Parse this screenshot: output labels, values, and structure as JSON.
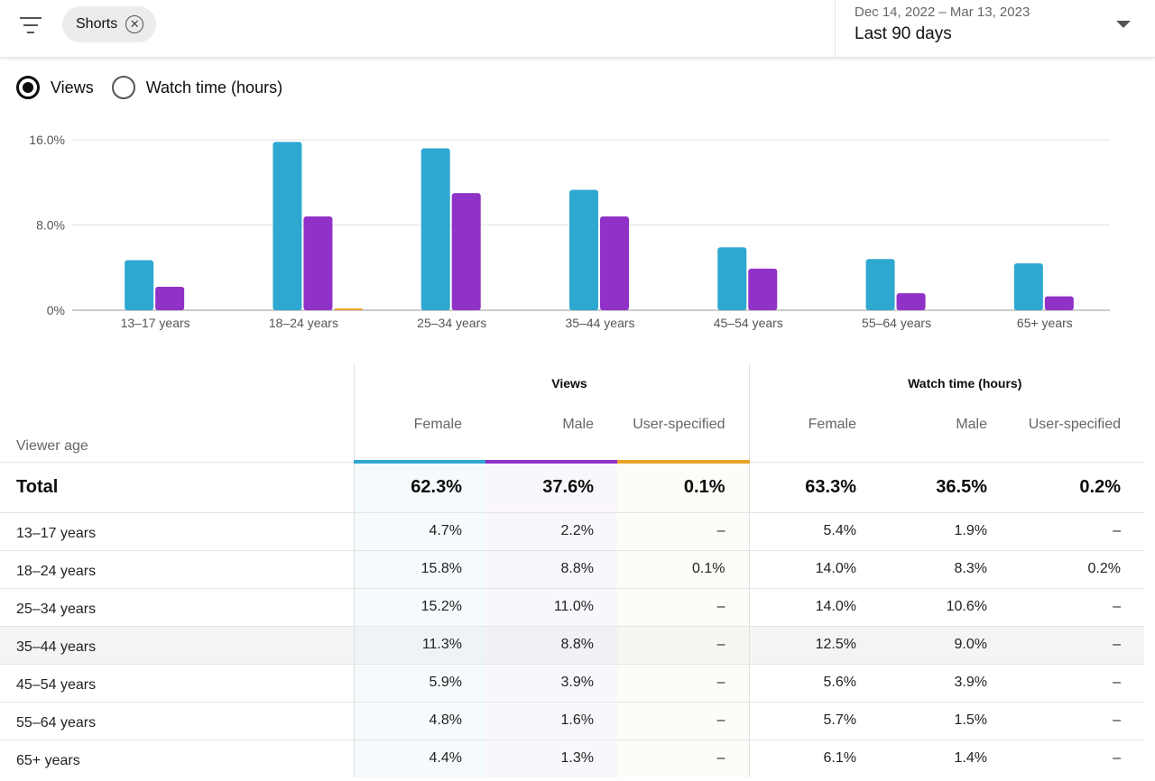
{
  "topbar": {
    "filter_chip": "Shorts",
    "date_range": "Dec 14, 2022 – Mar 13, 2023",
    "period": "Last 90 days"
  },
  "metric_toggle": {
    "options": [
      "Views",
      "Watch time (hours)"
    ],
    "selected": "Views"
  },
  "colors": {
    "female": "#2ea8d1",
    "male": "#9032c8",
    "user_specified": "#e8a22a"
  },
  "chart_data": {
    "type": "bar",
    "categories": [
      "13–17 years",
      "18–24 years",
      "25–34 years",
      "35–44 years",
      "45–54 years",
      "55–64 years",
      "65+ years"
    ],
    "series": [
      {
        "key": "female",
        "values": [
          4.7,
          15.8,
          15.2,
          11.3,
          5.9,
          4.8,
          4.4
        ]
      },
      {
        "key": "male",
        "values": [
          2.2,
          8.8,
          11.0,
          8.8,
          3.9,
          1.6,
          1.3
        ]
      },
      {
        "key": "user_specified",
        "values": [
          0,
          0.1,
          0,
          0,
          0,
          0,
          0
        ]
      }
    ],
    "yticks": [
      "0%",
      "8.0%",
      "16.0%"
    ],
    "ylim": [
      0,
      16
    ],
    "grid": true
  },
  "table": {
    "age_header": "Viewer age",
    "groups": [
      "Views",
      "Watch time (hours)"
    ],
    "sub_headers": [
      "Female",
      "Male",
      "User-specified"
    ],
    "total": {
      "label": "Total",
      "values": [
        "62.3%",
        "37.6%",
        "0.1%",
        "63.3%",
        "36.5%",
        "0.2%"
      ]
    },
    "rows": [
      {
        "label": "13–17 years",
        "values": [
          "4.7%",
          "2.2%",
          "–",
          "5.4%",
          "1.9%",
          "–"
        ]
      },
      {
        "label": "18–24 years",
        "values": [
          "15.8%",
          "8.8%",
          "0.1%",
          "14.0%",
          "8.3%",
          "0.2%"
        ]
      },
      {
        "label": "25–34 years",
        "values": [
          "15.2%",
          "11.0%",
          "–",
          "14.0%",
          "10.6%",
          "–"
        ]
      },
      {
        "label": "35–44 years",
        "values": [
          "11.3%",
          "8.8%",
          "–",
          "12.5%",
          "9.0%",
          "–"
        ]
      },
      {
        "label": "45–54 years",
        "values": [
          "5.9%",
          "3.9%",
          "–",
          "5.6%",
          "3.9%",
          "–"
        ]
      },
      {
        "label": "55–64 years",
        "values": [
          "4.8%",
          "1.6%",
          "–",
          "5.7%",
          "1.5%",
          "–"
        ]
      },
      {
        "label": "65+ years",
        "values": [
          "4.4%",
          "1.3%",
          "–",
          "6.1%",
          "1.4%",
          "–"
        ]
      }
    ]
  }
}
